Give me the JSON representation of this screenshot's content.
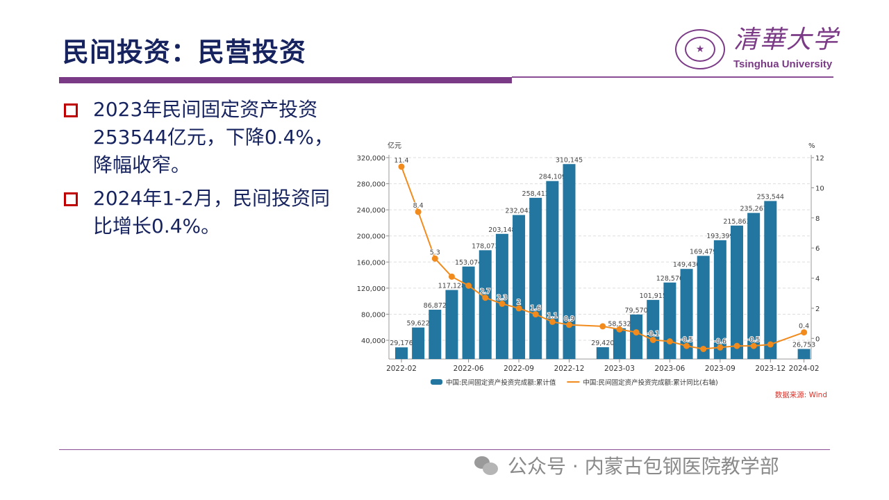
{
  "slide": {
    "title": "民间投资：民营投资",
    "logo": {
      "cn": "清華大学",
      "en": "Tsinghua University"
    },
    "bullets": [
      "2023年民间固定资产投资253544亿元，下降0.4%，降幅收窄。",
      "2024年1-2月，民间投资同比增长0.4%。"
    ],
    "watermark": "公众号 · 内蒙古包钢医院教学部"
  },
  "colors": {
    "bar": "#23769f",
    "line": "#f28b1d",
    "title": "#16235e",
    "accent": "#7b3a86",
    "bullet": "#c00000",
    "source": "#d9342b"
  },
  "chart_data": {
    "type": "bar",
    "categories": [
      "2022-02",
      "2022-03",
      "2022-04",
      "2022-05",
      "2022-06",
      "2022-07",
      "2022-08",
      "2022-09",
      "2022-10",
      "2022-11",
      "2022-12",
      "2023-01",
      "2023-02",
      "2023-03",
      "2023-04",
      "2023-05",
      "2023-06",
      "2023-07",
      "2023-08",
      "2023-09",
      "2023-10",
      "2023-11",
      "2023-12",
      "2024-01",
      "2024-02"
    ],
    "x_tick_labels": [
      "2022-02",
      "2022-06",
      "2022-09",
      "2022-12",
      "2023-03",
      "2023-06",
      "2023-09",
      "2023-12",
      "2024-02"
    ],
    "series": [
      {
        "name": "中国:民间固定资产投资完成额:累计值",
        "type": "bar",
        "axis": "left",
        "values": [
          29176,
          59622,
          86872,
          117128,
          153074,
          178073,
          203148,
          232043,
          258413,
          284109,
          310145,
          null,
          29420,
          58532,
          79570,
          101915,
          128570,
          149436,
          169479,
          193399,
          215863,
          235267,
          253544,
          null,
          26753
        ]
      },
      {
        "name": "中国:民间固定资产投资完成额:累计同比(右轴)",
        "type": "line",
        "axis": "right",
        "values": [
          11.4,
          8.4,
          5.3,
          4.1,
          3.5,
          2.7,
          2.3,
          2,
          1.6,
          1.1,
          0.9,
          null,
          0.8,
          0.6,
          0.4,
          -0.1,
          -0.2,
          -0.5,
          -0.7,
          -0.6,
          -0.5,
          -0.5,
          -0.4,
          null,
          0.4
        ],
        "labels": [
          "11.4",
          "8.4",
          "5.3",
          null,
          null,
          "2.7",
          "2.3",
          "2",
          "1.6",
          "1.1",
          "0.9",
          null,
          null,
          null,
          null,
          "-0.1",
          null,
          "-0.5",
          null,
          "-0.6",
          null,
          "-0.5",
          null,
          null,
          "0.4"
        ]
      }
    ],
    "y_left": {
      "unit": "亿元",
      "ticks": [
        "40,000",
        "80,000",
        "120,000",
        "160,000",
        "200,000",
        "240,000",
        "280,000",
        "320,000"
      ],
      "range": [
        11300,
        320000
      ]
    },
    "y_right": {
      "unit": "%",
      "ticks": [
        "0",
        "2",
        "4",
        "6",
        "8",
        "10",
        "12"
      ],
      "range": [
        -1.37,
        12
      ]
    },
    "grid": true,
    "legend_position": "bottom",
    "source": "数据来源: Wind"
  }
}
